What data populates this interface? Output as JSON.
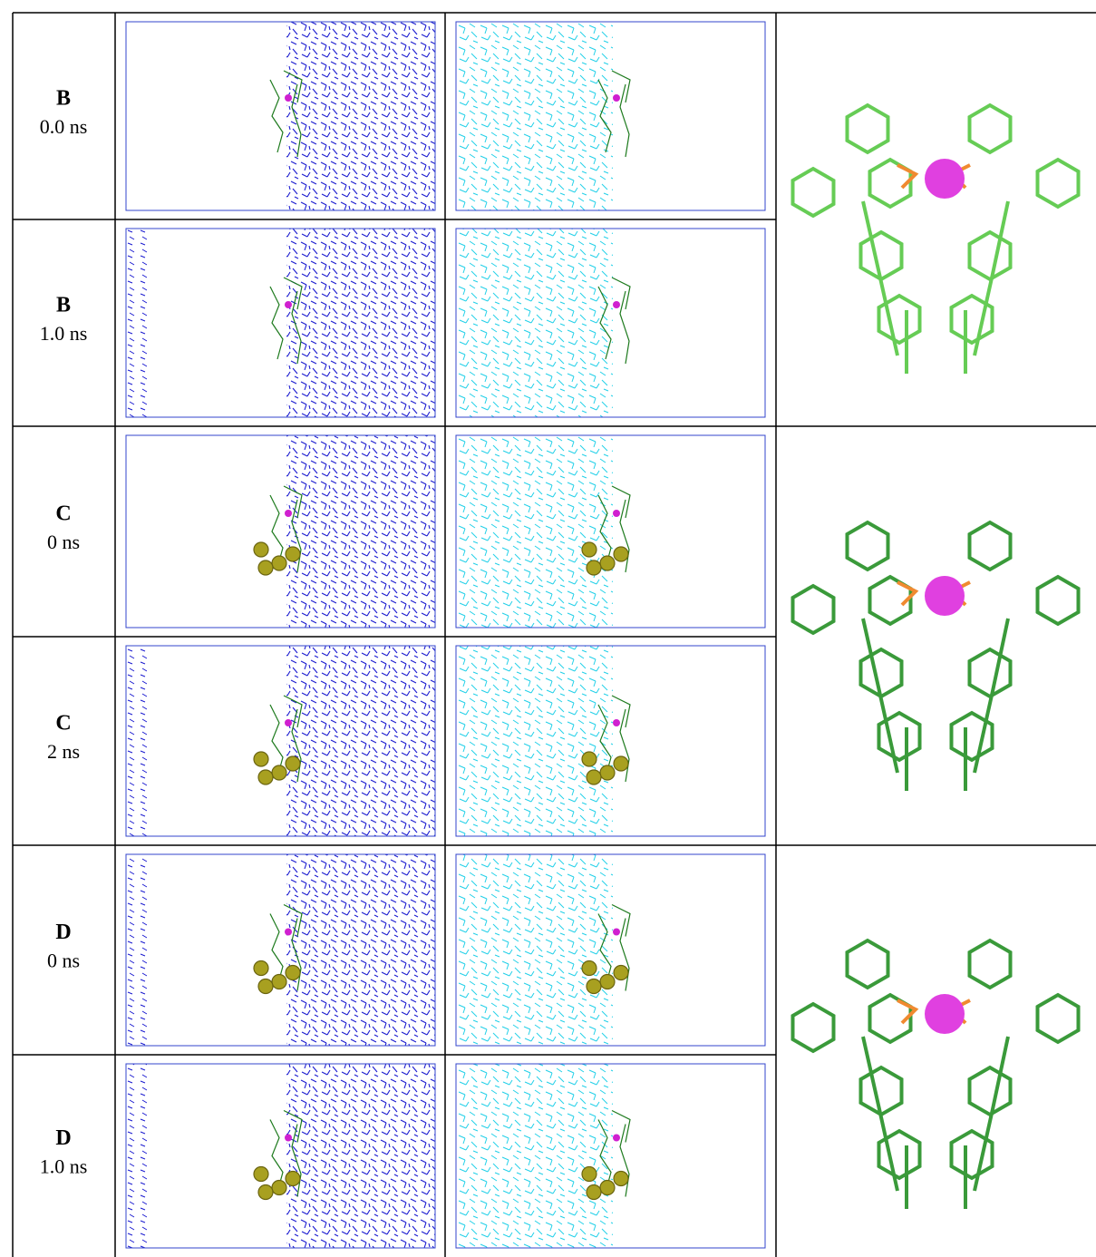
{
  "rows": [
    {
      "label": "B",
      "time": "0.0 ns"
    },
    {
      "label": "B",
      "time": "1.0 ns"
    },
    {
      "label": "C",
      "time": "0 ns"
    },
    {
      "label": "C",
      "time": "2 ns"
    },
    {
      "label": "D",
      "time": "0 ns"
    },
    {
      "label": "D",
      "time": "1.0 ns"
    }
  ]
}
